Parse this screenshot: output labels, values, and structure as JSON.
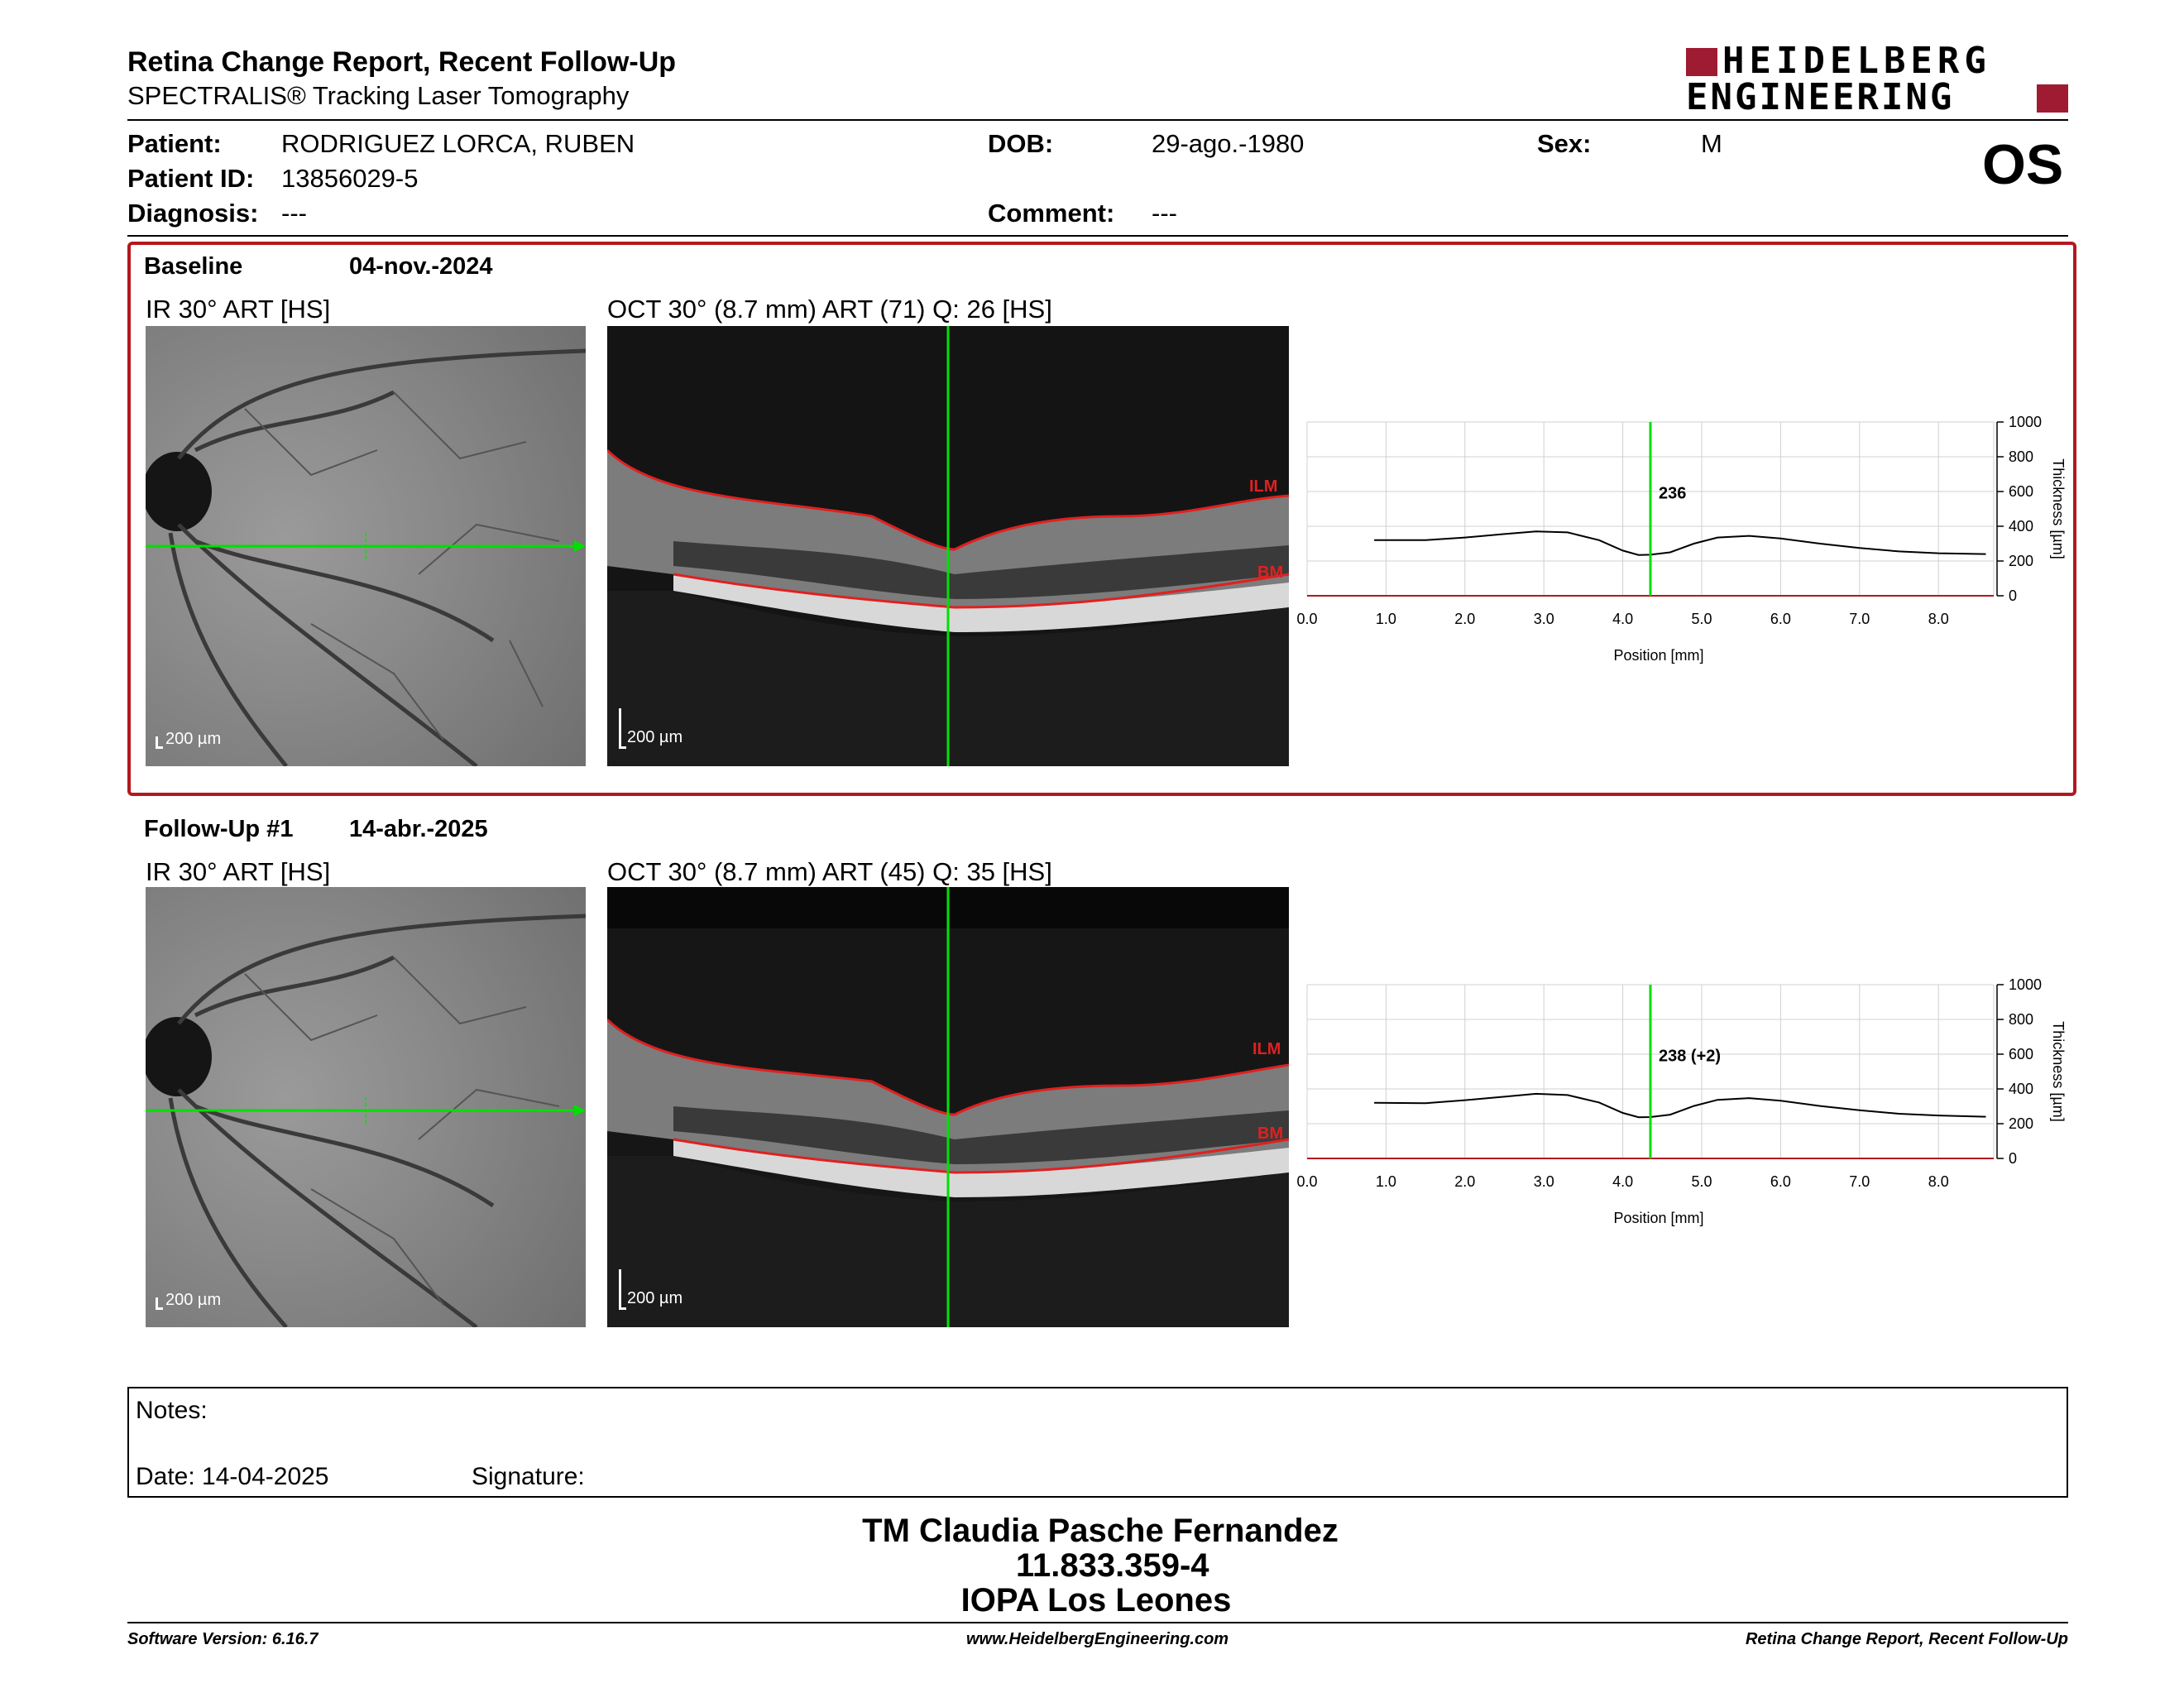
{
  "header": {
    "title": "Retina Change Report, Recent Follow-Up",
    "subtitle": "SPECTRALIS® Tracking Laser Tomography",
    "logo_line1": "HEIDELBERG",
    "logo_line2": "ENGINEERING",
    "eye": "OS"
  },
  "patient": {
    "patient_label": "Patient:",
    "patient_value": "RODRIGUEZ LORCA, RUBEN",
    "id_label": "Patient ID:",
    "id_value": "13856029-5",
    "diagnosis_label": "Diagnosis:",
    "diagnosis_value": "---",
    "dob_label": "DOB:",
    "dob_value": "29-ago.-1980",
    "comment_label": "Comment:",
    "comment_value": "---",
    "sex_label": "Sex:",
    "sex_value": "M"
  },
  "baseline": {
    "label": "Baseline",
    "date": "04-nov.-2024",
    "ir_title": "IR 30° ART [HS]",
    "oct_title": "OCT 30° (8.7 mm) ART (71) Q: 26 [HS]",
    "scale_ir": "200 µm",
    "scale_oct": "200 µm",
    "ilm": "ILM",
    "bm": "BM"
  },
  "followup": {
    "label": "Follow-Up #1",
    "date": "14-abr.-2025",
    "ir_title": "IR 30° ART [HS]",
    "oct_title": "OCT 30° (8.7 mm) ART (45) Q: 35 [HS]",
    "scale_ir": "200 µm",
    "scale_oct": "200 µm",
    "ilm": "ILM",
    "bm": "BM"
  },
  "chart_data": [
    {
      "type": "line",
      "xlabel": "Position [mm]",
      "ylabel": "Thickness [µm]",
      "xlim": [
        0,
        8.7
      ],
      "ylim": [
        0,
        1000
      ],
      "x_ticks": [
        "0.0",
        "1.0",
        "2.0",
        "3.0",
        "4.0",
        "5.0",
        "6.0",
        "7.0",
        "8.0"
      ],
      "y_ticks": [
        "0",
        "200",
        "400",
        "600",
        "800",
        "1000"
      ],
      "grid": true,
      "marker_x": 4.35,
      "marker_label": "236",
      "x": [
        0.85,
        1.5,
        2.0,
        2.5,
        2.9,
        3.3,
        3.7,
        4.0,
        4.2,
        4.35,
        4.6,
        4.9,
        5.2,
        5.6,
        6.0,
        6.5,
        7.0,
        7.5,
        8.0,
        8.6
      ],
      "y": [
        320,
        320,
        335,
        355,
        370,
        365,
        320,
        260,
        235,
        236,
        250,
        300,
        335,
        345,
        330,
        300,
        275,
        255,
        245,
        240
      ]
    },
    {
      "type": "line",
      "xlabel": "Position [mm]",
      "ylabel": "Thickness [µm]",
      "xlim": [
        0,
        8.7
      ],
      "ylim": [
        0,
        1000
      ],
      "x_ticks": [
        "0.0",
        "1.0",
        "2.0",
        "3.0",
        "4.0",
        "5.0",
        "6.0",
        "7.0",
        "8.0"
      ],
      "y_ticks": [
        "0",
        "200",
        "400",
        "600",
        "800",
        "1000"
      ],
      "grid": true,
      "marker_x": 4.35,
      "marker_label": "238 (+2)",
      "x": [
        0.85,
        1.5,
        2.0,
        2.5,
        2.9,
        3.3,
        3.7,
        4.0,
        4.2,
        4.35,
        4.6,
        4.9,
        5.2,
        5.6,
        6.0,
        6.5,
        7.0,
        7.5,
        8.0,
        8.6
      ],
      "y": [
        320,
        318,
        335,
        355,
        372,
        365,
        322,
        262,
        237,
        238,
        252,
        302,
        337,
        347,
        332,
        302,
        277,
        257,
        247,
        240
      ]
    }
  ],
  "notes": {
    "notes_label": "Notes:",
    "date_label": "Date: 14-04-2025",
    "signature_label": "Signature:"
  },
  "stamp": {
    "line1": "TM Claudia Pasche Fernandez",
    "line2": "11.833.359-4",
    "line3": "IOPA Los Leones"
  },
  "footer": {
    "software": "Software Version: 6.16.7",
    "website": "www.HeidelbergEngineering.com",
    "report": "Retina Change Report, Recent Follow-Up"
  },
  "colors": {
    "brand_red": "#b3181e",
    "marker_green": "#00e000",
    "segmentation_red": "#e02020"
  }
}
